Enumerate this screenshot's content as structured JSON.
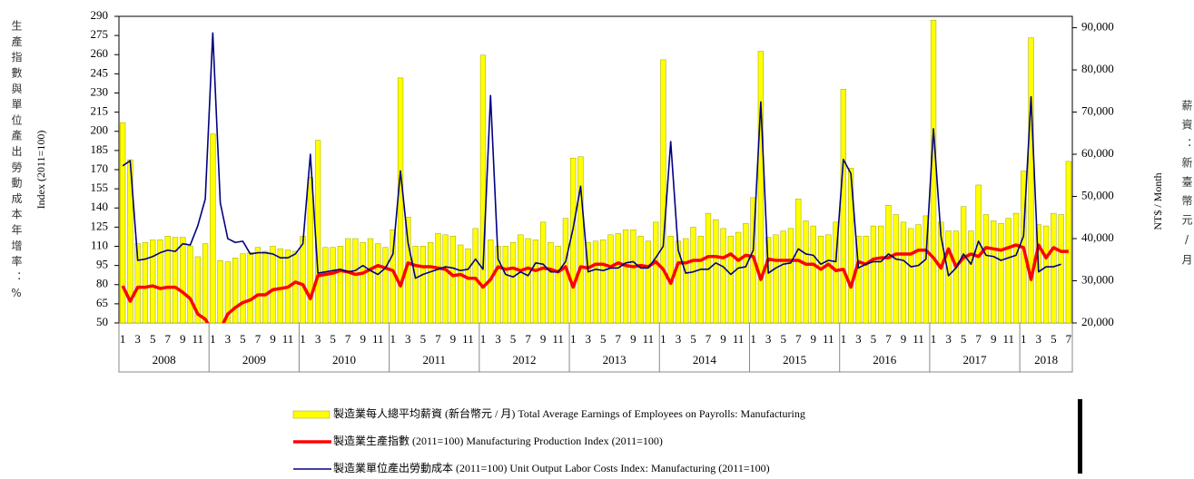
{
  "chart_data": {
    "type": "bar-line",
    "ylabel_cn": "生產指數與單位產出勞動成本年增率：%",
    "ylabel": "Index (2011=100)",
    "y2label": "NT$ / Month",
    "y2label_cn": "薪資：新臺幣元/月",
    "categories": [
      "1",
      null,
      "3",
      null,
      "5",
      null,
      "7",
      null,
      "9",
      null,
      "11",
      null,
      "1",
      null,
      "3",
      null,
      "5",
      null,
      "7",
      null,
      "9",
      null,
      "11",
      null,
      "1",
      null,
      "3",
      null,
      "5",
      null,
      "7",
      null,
      "9",
      null,
      "11",
      null,
      "1",
      null,
      "3",
      null,
      "5",
      null,
      "7",
      null,
      "9",
      null,
      "11",
      null,
      "1",
      null,
      "3",
      null,
      "5",
      null,
      "7",
      null,
      "9",
      null,
      "11",
      null,
      "1",
      null,
      "3",
      null,
      "5",
      null,
      "7",
      null,
      "9",
      null,
      "11",
      null,
      "1",
      null,
      "3",
      null,
      "5",
      null,
      "7",
      null,
      "9",
      null,
      "11",
      null,
      "1",
      null,
      "3",
      null,
      "5",
      null,
      "7",
      null,
      "9",
      null,
      "11",
      null,
      "1",
      null,
      "3",
      null,
      "5",
      null,
      "7",
      null,
      "9",
      null,
      "11",
      null,
      "1",
      null,
      "3",
      null,
      "5",
      null,
      "7",
      null,
      "9",
      null,
      "11",
      null,
      "1",
      null,
      "3",
      null,
      "5",
      null,
      "7"
    ],
    "years": [
      "2008",
      "2009",
      "2010",
      "2011",
      "2012",
      "2013",
      "2014",
      "2015",
      "2016",
      "2017",
      "2018"
    ],
    "ylim": [
      50,
      290
    ],
    "yticks": [
      50,
      65,
      80,
      95,
      110,
      125,
      140,
      155,
      170,
      185,
      200,
      215,
      230,
      245,
      260,
      275,
      290
    ],
    "y2lim": [
      20000,
      92700
    ],
    "y2ticks": [
      {
        "value": 20000,
        "label": "20,000"
      },
      {
        "value": 30000,
        "label": "30,000"
      },
      {
        "value": 40000,
        "label": "40,000"
      },
      {
        "value": 50000,
        "label": "50,000"
      },
      {
        "value": 60000,
        "label": "60,000"
      },
      {
        "value": 70000,
        "label": "70,000"
      },
      {
        "value": 80000,
        "label": "80,000"
      },
      {
        "value": 90000,
        "label": "90,000"
      }
    ],
    "series": [
      {
        "name": "製造業每人總平均薪資 (新台幣元 / 月)  Total Average Earnings of Employees on Payrolls: Manufacturing",
        "type": "bar",
        "axis": "y2",
        "color": "#ffff00",
        "values": [
          67500,
          58700,
          38800,
          39100,
          39700,
          39700,
          40600,
          40300,
          40300,
          38200,
          35700,
          38800,
          64800,
          34800,
          34500,
          35400,
          36400,
          36700,
          37900,
          37000,
          38200,
          37600,
          37300,
          37000,
          40600,
          54500,
          63300,
          37900,
          37900,
          38200,
          40000,
          40000,
          39100,
          40000,
          38800,
          37900,
          42100,
          78100,
          45100,
          38200,
          38200,
          39100,
          41200,
          40900,
          40600,
          38500,
          37600,
          42400,
          83500,
          39700,
          38200,
          38200,
          39100,
          40900,
          40000,
          39700,
          43900,
          39100,
          38200,
          44800,
          59100,
          59400,
          39100,
          39400,
          39700,
          40900,
          41200,
          42100,
          42100,
          40600,
          39400,
          43900,
          82400,
          40600,
          39400,
          40000,
          42700,
          40600,
          46000,
          44500,
          42400,
          40600,
          41500,
          43600,
          49700,
          84400,
          40300,
          40900,
          41800,
          42400,
          49400,
          44200,
          43000,
          40600,
          40900,
          43900,
          75400,
          56700,
          40600,
          40600,
          43000,
          43000,
          47900,
          45700,
          43900,
          42400,
          43300,
          45400,
          91800,
          43900,
          41800,
          41800,
          47600,
          41800,
          52700,
          45700,
          44200,
          43600,
          44800,
          46000,
          56000,
          87600,
          43300,
          43000,
          46000,
          45700,
          58300
        ]
      },
      {
        "name": "製造業生產指數 (2011=100) Manufacturing Production Index (2011=100)",
        "type": "line",
        "color": "#ff0000",
        "width": 3.5,
        "values": [
          79,
          67,
          78,
          78,
          79,
          77,
          78,
          78,
          74,
          69,
          57,
          53,
          43,
          45,
          57,
          62,
          66,
          68,
          72,
          72,
          76,
          77,
          78,
          82,
          80,
          69,
          87,
          88,
          89,
          91,
          90,
          88,
          89,
          92,
          95,
          93,
          91,
          79,
          97,
          95,
          94,
          94,
          93,
          92,
          87,
          88,
          85,
          85,
          78,
          84,
          94,
          92,
          93,
          91,
          93,
          91,
          93,
          92,
          90,
          94,
          78,
          94,
          93,
          96,
          96,
          94,
          97,
          95,
          94,
          95,
          94,
          98,
          92,
          81,
          97,
          97,
          99,
          99,
          102,
          102,
          101,
          104,
          99,
          103,
          102,
          84,
          100,
          99,
          99,
          99,
          99,
          96,
          96,
          92,
          96,
          91,
          92,
          78,
          98,
          96,
          100,
          101,
          101,
          104,
          104,
          104,
          107,
          107,
          101,
          93,
          108,
          94,
          101,
          104,
          102,
          109,
          108,
          107,
          109,
          111,
          109,
          84,
          111,
          101,
          109,
          106,
          106
        ]
      },
      {
        "name": "製造業單位產出勞動成本 (2011=100) Unit Output Labor Costs Index: Manufacturing (2011=100)",
        "type": "line",
        "color": "#000080",
        "width": 1.6,
        "values": [
          173,
          177,
          99,
          100,
          102,
          105,
          107,
          106,
          112,
          111,
          126,
          147,
          277,
          144,
          116,
          113,
          114,
          104,
          105,
          105,
          104,
          101,
          101,
          104,
          112,
          182,
          89,
          90,
          91,
          92,
          90,
          91,
          95,
          91,
          88,
          93,
          104,
          169,
          113,
          85,
          88,
          90,
          92,
          94,
          93,
          91,
          92,
          100,
          92,
          228,
          100,
          88,
          86,
          90,
          87,
          97,
          96,
          90,
          90,
          98,
          124,
          157,
          90,
          92,
          91,
          93,
          93,
          97,
          98,
          93,
          93,
          101,
          110,
          192,
          107,
          89,
          90,
          92,
          92,
          97,
          94,
          88,
          93,
          94,
          107,
          223,
          89,
          93,
          96,
          97,
          108,
          104,
          103,
          96,
          99,
          98,
          178,
          167,
          93,
          96,
          98,
          98,
          104,
          100,
          99,
          94,
          95,
          100,
          202,
          118,
          87,
          93,
          104,
          96,
          114,
          103,
          102,
          99,
          101,
          103,
          118,
          227,
          90,
          94,
          94,
          96,
          null
        ]
      }
    ]
  }
}
